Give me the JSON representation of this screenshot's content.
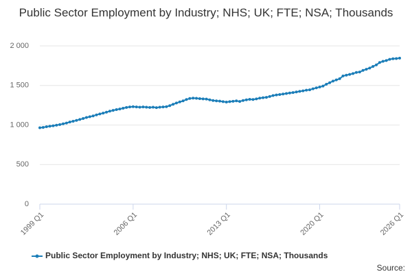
{
  "chart_data": {
    "type": "line",
    "title": "Public Sector Employment by Industry; NHS; UK; FTE; NSA; Thousands",
    "source": "Source:",
    "categories": [
      "1999 Q1",
      null,
      null,
      null,
      null,
      null,
      null,
      null,
      null,
      null,
      null,
      null,
      null,
      null,
      null,
      null,
      null,
      null,
      null,
      null,
      null,
      null,
      null,
      null,
      null,
      null,
      null,
      null,
      "2006 Q1",
      null,
      null,
      null,
      null,
      null,
      null,
      null,
      null,
      null,
      null,
      null,
      null,
      null,
      null,
      null,
      null,
      null,
      null,
      null,
      null,
      null,
      null,
      null,
      null,
      null,
      null,
      null,
      "2013 Q1",
      null,
      null,
      null,
      null,
      null,
      null,
      null,
      null,
      null,
      null,
      null,
      null,
      null,
      null,
      null,
      null,
      null,
      null,
      null,
      null,
      null,
      null,
      null,
      null,
      null,
      null,
      null,
      "2020 Q1",
      null,
      null,
      null,
      null,
      null,
      null,
      null,
      null,
      null,
      null,
      null,
      null,
      null,
      null,
      null,
      null,
      null,
      null,
      null,
      null,
      null,
      null,
      null,
      "2026 Q1"
    ],
    "series": [
      {
        "name": "Public Sector Employment by Industry; NHS; UK; FTE; NSA; Thousands",
        "color": "#1a7db8",
        "values": [
          965,
          970,
          978,
          985,
          990,
          998,
          1005,
          1015,
          1025,
          1038,
          1048,
          1058,
          1070,
          1082,
          1095,
          1105,
          1115,
          1128,
          1140,
          1150,
          1162,
          1175,
          1185,
          1195,
          1202,
          1212,
          1222,
          1228,
          1232,
          1228,
          1225,
          1228,
          1225,
          1222,
          1225,
          1220,
          1225,
          1228,
          1232,
          1245,
          1262,
          1278,
          1292,
          1305,
          1322,
          1335,
          1340,
          1338,
          1333,
          1330,
          1328,
          1318,
          1310,
          1305,
          1302,
          1295,
          1290,
          1295,
          1300,
          1305,
          1298,
          1310,
          1318,
          1325,
          1322,
          1330,
          1340,
          1345,
          1350,
          1360,
          1372,
          1380,
          1385,
          1392,
          1398,
          1405,
          1410,
          1418,
          1425,
          1432,
          1440,
          1445,
          1458,
          1470,
          1480,
          1492,
          1515,
          1535,
          1555,
          1570,
          1585,
          1620,
          1630,
          1640,
          1650,
          1665,
          1670,
          1690,
          1705,
          1720,
          1740,
          1760,
          1790,
          1805,
          1815,
          1830,
          1838,
          1840,
          1845
        ]
      }
    ],
    "ylim": [
      0,
      2000
    ],
    "yticks": [
      0,
      500,
      {
        "value": 1000,
        "label": "1 000"
      },
      {
        "value": 1500,
        "label": "1 500"
      },
      {
        "value": 2000,
        "label": "2 000"
      }
    ],
    "grid": true
  }
}
